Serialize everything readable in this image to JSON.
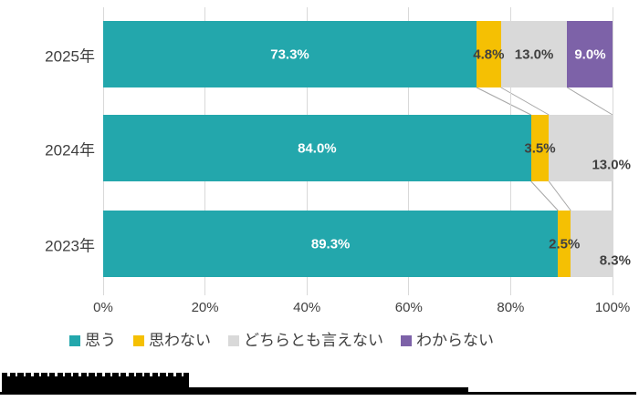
{
  "chart_data": {
    "type": "bar",
    "orientation": "horizontal",
    "stacked": true,
    "title": "",
    "categories": [
      "2025年",
      "2024年",
      "2023年"
    ],
    "series": [
      {
        "name": "思う",
        "color": "#23a7ac",
        "label_color": "#ffffff",
        "values": [
          73.3,
          84.0,
          89.3
        ]
      },
      {
        "name": "思わない",
        "color": "#f5c003",
        "label_color": "#404040",
        "values": [
          4.8,
          3.5,
          2.5
        ]
      },
      {
        "name": "どちらとも言えない",
        "color": "#d9d9d9",
        "label_color": "#404040",
        "values": [
          13.0,
          13.0,
          8.3
        ]
      },
      {
        "name": "わからない",
        "color": "#7d62a8",
        "label_color": "#ffffff",
        "values": [
          9.0,
          null,
          null
        ]
      }
    ],
    "data_labels": [
      [
        "73.3%",
        "4.8%",
        "13.0%",
        "9.0%"
      ],
      [
        "84.0%",
        "3.5%",
        "13.0%",
        null
      ],
      [
        "89.3%",
        "2.5%",
        "8.3%",
        null
      ]
    ],
    "x_axis": {
      "tick_labels": [
        "0%",
        "20%",
        "40%",
        "60%",
        "80%",
        "100%"
      ],
      "tick_values": [
        0,
        20,
        40,
        60,
        80,
        100
      ],
      "range": [
        0,
        100
      ]
    },
    "grid": true,
    "connector_lines": true,
    "connector_color": "#a6a6a6",
    "gridline_color": "#d9d9d9",
    "text_color": "#404040",
    "legend": {
      "position": "bottom",
      "items": [
        "思う",
        "思わない",
        "どちらとも言えない",
        "わからない"
      ]
    },
    "label_placement_overrides": [
      {
        "row": 1,
        "series": 2,
        "mode": "inside-end-low"
      },
      {
        "row": 2,
        "series": 2,
        "mode": "inside-end-low"
      }
    ]
  }
}
